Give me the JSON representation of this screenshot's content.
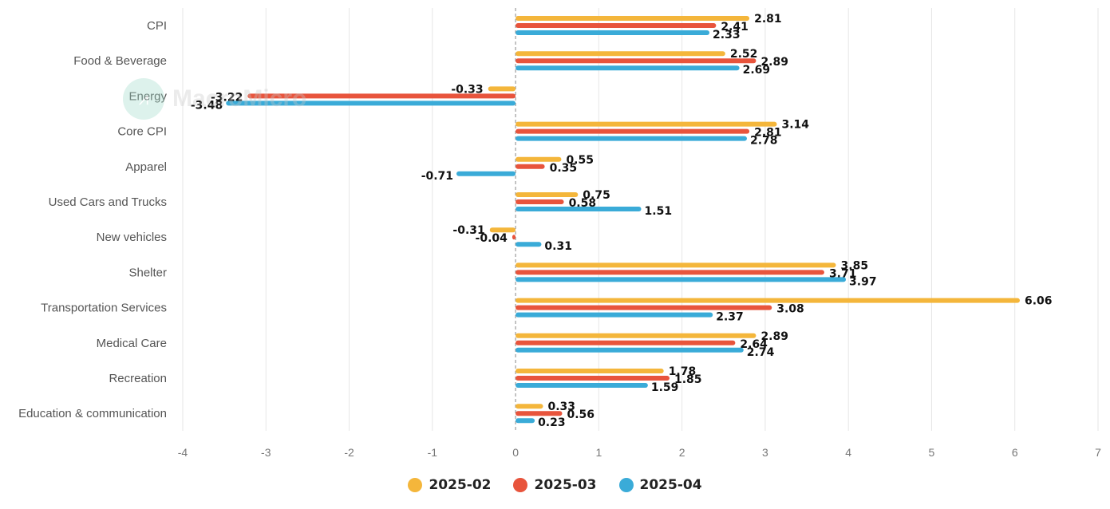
{
  "chart_data": {
    "type": "bar",
    "orientation": "horizontal",
    "categories": [
      "CPI",
      "Food & Beverage",
      "Energy",
      "Core CPI",
      "Apparel",
      "Used Cars and Trucks",
      "New vehicles",
      "Shelter",
      "Transportation Services",
      "Medical Care",
      "Recreation",
      "Education & communication"
    ],
    "series": [
      {
        "name": "2025-02",
        "color": "#f4b63b",
        "values": [
          2.81,
          2.52,
          -0.33,
          3.14,
          0.55,
          0.75,
          -0.31,
          3.85,
          6.06,
          2.89,
          1.78,
          0.33
        ]
      },
      {
        "name": "2025-03",
        "color": "#e8543c",
        "values": [
          2.41,
          2.89,
          -3.22,
          2.81,
          0.35,
          0.58,
          -0.04,
          3.71,
          3.08,
          2.64,
          1.85,
          0.56
        ]
      },
      {
        "name": "2025-04",
        "color": "#3aabd8",
        "values": [
          2.33,
          2.69,
          -3.48,
          2.78,
          -0.71,
          1.51,
          0.31,
          3.97,
          2.37,
          2.74,
          1.59,
          0.23
        ]
      }
    ],
    "xlim": [
      -4,
      7
    ],
    "xticks": [
      -4,
      -3,
      -2,
      -1,
      0,
      1,
      2,
      3,
      4,
      5,
      6,
      7
    ],
    "grid": true,
    "legend_position": "bottom-center"
  },
  "watermark": {
    "text": "MacroMicro",
    "icon": "macromicro-logo-icon"
  }
}
